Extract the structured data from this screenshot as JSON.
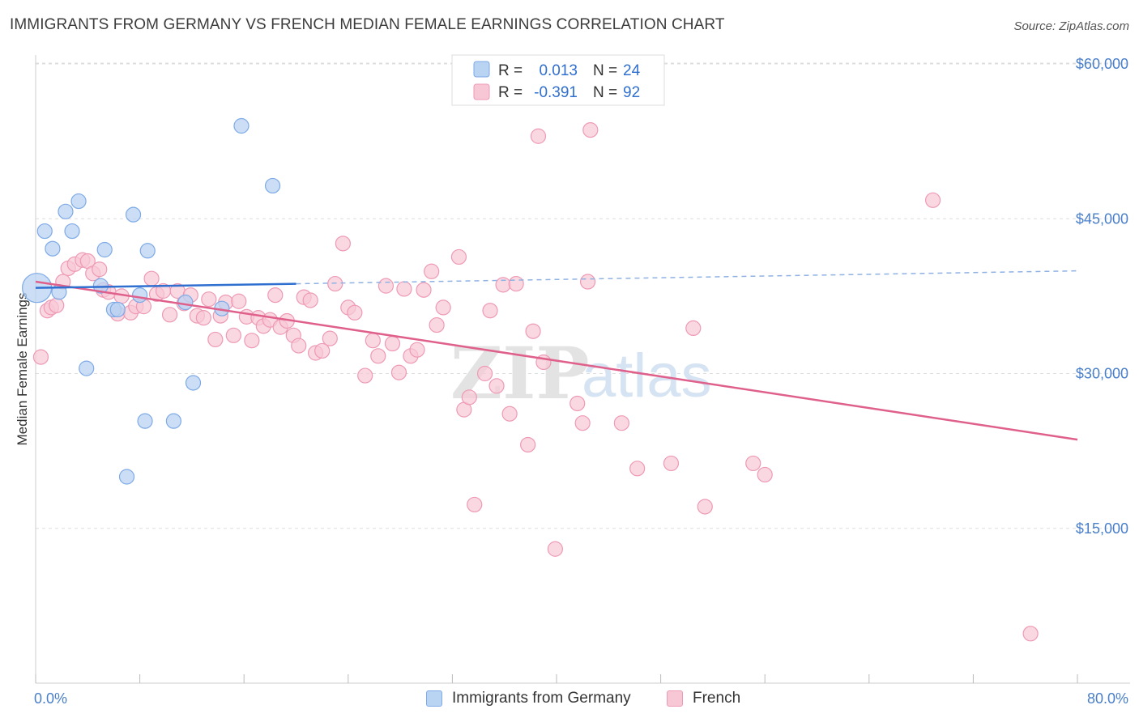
{
  "title": "IMMIGRANTS FROM GERMANY VS FRENCH MEDIAN FEMALE EARNINGS CORRELATION CHART",
  "source": "Source: ZipAtlas.com",
  "watermark": {
    "zip": "ZIP",
    "atlas": "atlas"
  },
  "colors": {
    "germany_fill": "#b9d3f3",
    "germany_stroke": "#7eaae6",
    "germany_line": "#2f6fd0",
    "french_fill": "#f8c7d6",
    "french_stroke": "#ee9ab5",
    "french_line": "#e0608c",
    "axis_label": "#4a7fc9"
  },
  "legend": {
    "rows": [
      {
        "r_label": "R =",
        "r_value": "0.013",
        "n_label": "N =",
        "n_value": "24"
      },
      {
        "r_label": "R =",
        "r_value": "-0.391",
        "n_label": "N =",
        "n_value": "92"
      }
    ]
  },
  "bottom_legend": {
    "germany": "Immigrants from Germany",
    "french": "French"
  },
  "chart_data": {
    "type": "scatter",
    "title": "IMMIGRANTS FROM GERMANY VS FRENCH MEDIAN FEMALE EARNINGS CORRELATION CHART",
    "xlabel": "",
    "ylabel": "Median Female Earnings",
    "xlim": [
      0,
      80
    ],
    "ylim": [
      0,
      62000
    ],
    "x_tick_labels": [
      "0.0%",
      "80.0%"
    ],
    "y_ticks": [
      15000,
      30000,
      45000,
      60000
    ],
    "y_tick_labels": [
      "$15,000",
      "$30,000",
      "$45,000",
      "$60,000"
    ],
    "grid": true,
    "legend_position": "top-center",
    "series": [
      {
        "name": "Immigrants from Germany",
        "R": 0.013,
        "N": 24,
        "trend": {
          "x": [
            0,
            20
          ],
          "y": [
            38300,
            38700
          ],
          "dashed_extension": {
            "x": [
              20,
              80
            ],
            "y": [
              38700,
              39950
            ]
          }
        },
        "points": [
          {
            "x": 0.1,
            "y": 38300,
            "big": true
          },
          {
            "x": 0.7,
            "y": 43800
          },
          {
            "x": 1.3,
            "y": 42100
          },
          {
            "x": 1.8,
            "y": 37900
          },
          {
            "x": 2.3,
            "y": 45700
          },
          {
            "x": 2.8,
            "y": 43800
          },
          {
            "x": 3.3,
            "y": 46700
          },
          {
            "x": 3.9,
            "y": 30500
          },
          {
            "x": 5.0,
            "y": 38500
          },
          {
            "x": 5.3,
            "y": 42000
          },
          {
            "x": 6.0,
            "y": 36200
          },
          {
            "x": 6.3,
            "y": 36200
          },
          {
            "x": 7.0,
            "y": 20000
          },
          {
            "x": 7.5,
            "y": 45400
          },
          {
            "x": 8.0,
            "y": 37600
          },
          {
            "x": 8.4,
            "y": 25400
          },
          {
            "x": 8.6,
            "y": 41900
          },
          {
            "x": 10.6,
            "y": 25400
          },
          {
            "x": 11.5,
            "y": 36900
          },
          {
            "x": 12.1,
            "y": 29100
          },
          {
            "x": 14.3,
            "y": 36300
          },
          {
            "x": 15.8,
            "y": 54000
          },
          {
            "x": 18.2,
            "y": 48200
          }
        ]
      },
      {
        "name": "French",
        "R": -0.391,
        "N": 92,
        "trend": {
          "x": [
            0,
            80
          ],
          "y": [
            38900,
            23600
          ]
        },
        "points": [
          {
            "x": 0.4,
            "y": 31600
          },
          {
            "x": 0.9,
            "y": 36100
          },
          {
            "x": 1.2,
            "y": 36400
          },
          {
            "x": 1.6,
            "y": 36600
          },
          {
            "x": 2.1,
            "y": 38900
          },
          {
            "x": 2.5,
            "y": 40200
          },
          {
            "x": 3.0,
            "y": 40600
          },
          {
            "x": 3.6,
            "y": 41000
          },
          {
            "x": 4.0,
            "y": 40900
          },
          {
            "x": 4.4,
            "y": 39700
          },
          {
            "x": 4.9,
            "y": 40100
          },
          {
            "x": 5.2,
            "y": 38100
          },
          {
            "x": 5.6,
            "y": 37900
          },
          {
            "x": 6.3,
            "y": 35800
          },
          {
            "x": 6.6,
            "y": 37500
          },
          {
            "x": 7.3,
            "y": 35900
          },
          {
            "x": 7.7,
            "y": 36500
          },
          {
            "x": 8.3,
            "y": 36500
          },
          {
            "x": 8.9,
            "y": 39200
          },
          {
            "x": 9.3,
            "y": 37700
          },
          {
            "x": 9.8,
            "y": 38000
          },
          {
            "x": 10.3,
            "y": 35700
          },
          {
            "x": 10.9,
            "y": 38000
          },
          {
            "x": 11.4,
            "y": 36800
          },
          {
            "x": 11.9,
            "y": 37600
          },
          {
            "x": 12.4,
            "y": 35600
          },
          {
            "x": 12.9,
            "y": 35400
          },
          {
            "x": 13.3,
            "y": 37200
          },
          {
            "x": 13.8,
            "y": 33300
          },
          {
            "x": 14.2,
            "y": 35600
          },
          {
            "x": 14.6,
            "y": 36900
          },
          {
            "x": 15.2,
            "y": 33700
          },
          {
            "x": 15.6,
            "y": 37000
          },
          {
            "x": 16.2,
            "y": 35500
          },
          {
            "x": 16.6,
            "y": 33200
          },
          {
            "x": 17.1,
            "y": 35400
          },
          {
            "x": 17.5,
            "y": 34600
          },
          {
            "x": 18.0,
            "y": 35200
          },
          {
            "x": 18.4,
            "y": 37600
          },
          {
            "x": 18.8,
            "y": 34500
          },
          {
            "x": 19.3,
            "y": 35100
          },
          {
            "x": 19.8,
            "y": 33700
          },
          {
            "x": 20.2,
            "y": 32700
          },
          {
            "x": 20.6,
            "y": 37400
          },
          {
            "x": 21.1,
            "y": 37100
          },
          {
            "x": 21.5,
            "y": 32000
          },
          {
            "x": 22.0,
            "y": 32200
          },
          {
            "x": 22.6,
            "y": 33400
          },
          {
            "x": 23.0,
            "y": 38700
          },
          {
            "x": 23.6,
            "y": 42600
          },
          {
            "x": 24.0,
            "y": 36400
          },
          {
            "x": 24.5,
            "y": 35900
          },
          {
            "x": 25.3,
            "y": 29800
          },
          {
            "x": 25.9,
            "y": 33200
          },
          {
            "x": 26.3,
            "y": 31700
          },
          {
            "x": 26.9,
            "y": 38500
          },
          {
            "x": 27.4,
            "y": 32900
          },
          {
            "x": 27.9,
            "y": 30100
          },
          {
            "x": 28.3,
            "y": 38200
          },
          {
            "x": 28.8,
            "y": 31700
          },
          {
            "x": 29.3,
            "y": 32300
          },
          {
            "x": 29.8,
            "y": 38100
          },
          {
            "x": 30.4,
            "y": 39900
          },
          {
            "x": 30.8,
            "y": 34700
          },
          {
            "x": 31.3,
            "y": 36400
          },
          {
            "x": 32.5,
            "y": 41300
          },
          {
            "x": 32.9,
            "y": 26500
          },
          {
            "x": 33.3,
            "y": 27700
          },
          {
            "x": 33.7,
            "y": 17300
          },
          {
            "x": 34.5,
            "y": 30000
          },
          {
            "x": 34.9,
            "y": 36100
          },
          {
            "x": 35.4,
            "y": 28800
          },
          {
            "x": 35.9,
            "y": 38600
          },
          {
            "x": 36.4,
            "y": 26100
          },
          {
            "x": 36.9,
            "y": 38700
          },
          {
            "x": 37.8,
            "y": 23100
          },
          {
            "x": 38.2,
            "y": 34100
          },
          {
            "x": 38.6,
            "y": 53000
          },
          {
            "x": 39.0,
            "y": 31100
          },
          {
            "x": 39.9,
            "y": 13000
          },
          {
            "x": 41.6,
            "y": 27100
          },
          {
            "x": 42.0,
            "y": 25200
          },
          {
            "x": 42.4,
            "y": 38900
          },
          {
            "x": 42.6,
            "y": 53600
          },
          {
            "x": 45.0,
            "y": 25200
          },
          {
            "x": 46.2,
            "y": 20800
          },
          {
            "x": 48.8,
            "y": 21300
          },
          {
            "x": 50.5,
            "y": 34400
          },
          {
            "x": 51.4,
            "y": 17100
          },
          {
            "x": 55.1,
            "y": 21300
          },
          {
            "x": 56.0,
            "y": 20200
          },
          {
            "x": 68.9,
            "y": 46800
          },
          {
            "x": 76.4,
            "y": 4800
          }
        ]
      }
    ]
  }
}
